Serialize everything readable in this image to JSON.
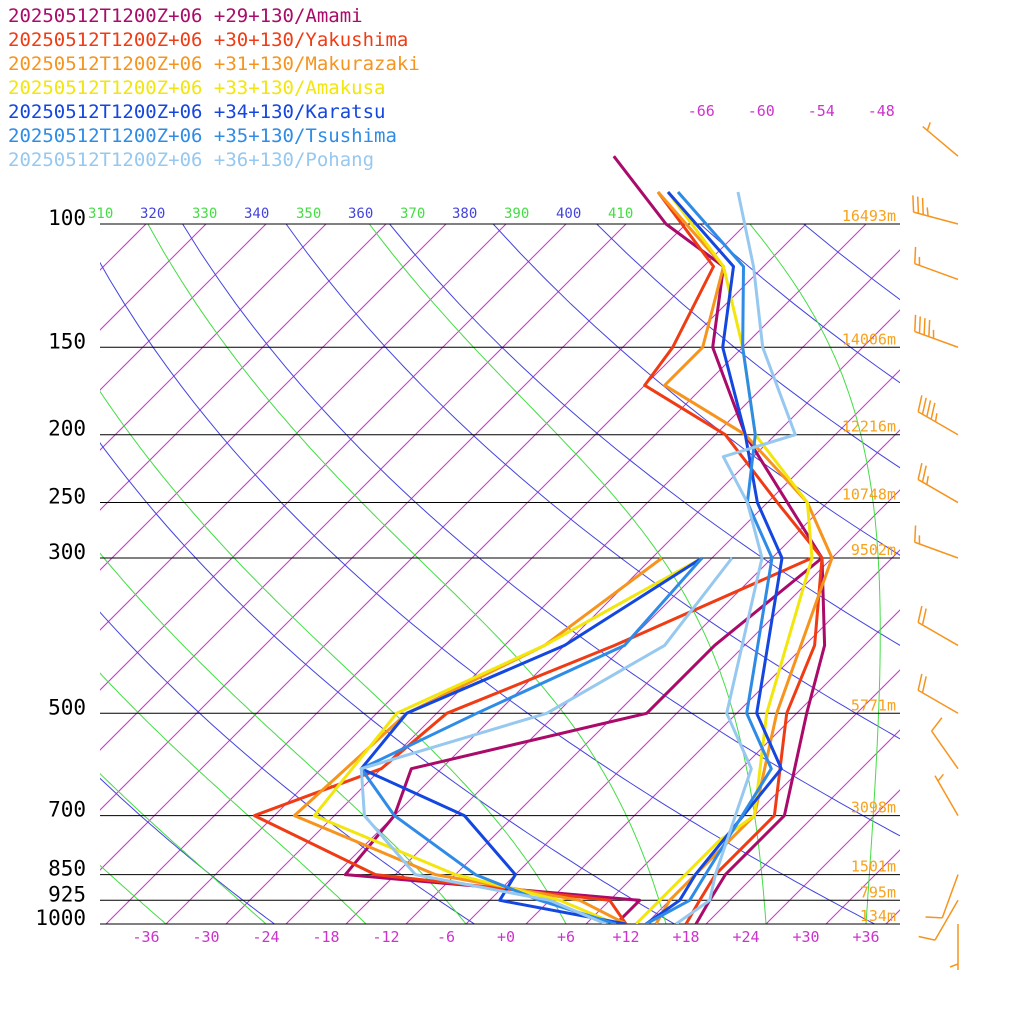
{
  "legend": [
    {
      "label": "20250512T1200Z+06 +29+130/Amami",
      "color": "#aa0a6a"
    },
    {
      "label": "20250512T1200Z+06 +30+130/Yakushima",
      "color": "#f03c14"
    },
    {
      "label": "20250512T1200Z+06 +31+130/Makurazaki",
      "color": "#f7941d"
    },
    {
      "label": "20250512T1200Z+06 +33+130/Amakusa",
      "color": "#f2e60c"
    },
    {
      "label": "20250512T1200Z+06 +34+130/Karatsu",
      "color": "#1446e0"
    },
    {
      "label": "20250512T1200Z+06 +35+130/Tsushima",
      "color": "#2e8ce6"
    },
    {
      "label": "20250512T1200Z+06 +36+130/Pohang",
      "color": "#96c8f0"
    }
  ],
  "colors": {
    "isotherm": "#cc33cc",
    "dry_adiabat": "#4444dd",
    "moist_adiabat": "#44dd44",
    "height_label": "#f7a21d",
    "wind_barb": "#f7941d",
    "pressure_line": "#000000"
  },
  "chart_data": {
    "type": "line",
    "subtype": "skew-T log-p",
    "pressure_levels": [
      100,
      150,
      200,
      250,
      300,
      500,
      700,
      850,
      925,
      1000
    ],
    "pressure_labels": [
      "100",
      "150",
      "200",
      "250",
      "300",
      "500",
      "700",
      "850",
      "925",
      "1000"
    ],
    "height_labels": [
      {
        "p": 100,
        "text": "16493m"
      },
      {
        "p": 150,
        "text": "14006m"
      },
      {
        "p": 200,
        "text": "12216m"
      },
      {
        "p": 250,
        "text": "10748m"
      },
      {
        "p": 300,
        "text": "9502m"
      },
      {
        "p": 500,
        "text": "5771m"
      },
      {
        "p": 700,
        "text": "3098m"
      },
      {
        "p": 850,
        "text": "1501m"
      },
      {
        "p": 925,
        "text": "795m"
      },
      {
        "p": 1000,
        "text": "134m"
      }
    ],
    "temperature_ticks": [
      "-36",
      "-30",
      "-24",
      "-18",
      "-12",
      "-6",
      "+0",
      "+6",
      "+12",
      "+18",
      "+24",
      "+30",
      "+36"
    ],
    "temperature_tick_values": [
      -36,
      -30,
      -24,
      -18,
      -12,
      -6,
      0,
      6,
      12,
      18,
      24,
      30,
      36
    ],
    "upper_isotherm_labels": [
      {
        "t": -66,
        "text": "-66"
      },
      {
        "t": -60,
        "text": "-60"
      },
      {
        "t": -54,
        "text": "-54"
      },
      {
        "t": -48,
        "text": "-48"
      }
    ],
    "theta_labels": [
      {
        "text": "310",
        "kind": "moist"
      },
      {
        "text": "320",
        "kind": "dry"
      },
      {
        "text": "330",
        "kind": "moist"
      },
      {
        "text": "340",
        "kind": "dry"
      },
      {
        "text": "350",
        "kind": "moist"
      },
      {
        "text": "360",
        "kind": "dry"
      },
      {
        "text": "370",
        "kind": "moist"
      },
      {
        "text": "380",
        "kind": "dry"
      },
      {
        "text": "390",
        "kind": "moist"
      },
      {
        "text": "400",
        "kind": "dry"
      },
      {
        "text": "410",
        "kind": "moist"
      }
    ],
    "xlim": [
      -40,
      40
    ],
    "ylim": [
      1000,
      100
    ],
    "series": [
      {
        "name": "20250512T1200Z+06 +29+130/Amami",
        "temperature": [
          [
            1000,
            19
          ],
          [
            925,
            18
          ],
          [
            850,
            17
          ],
          [
            700,
            17
          ],
          [
            500,
            9
          ],
          [
            400,
            4
          ],
          [
            300,
            -5
          ],
          [
            250,
            -14
          ],
          [
            200,
            -25
          ],
          [
            150,
            -37
          ],
          [
            115,
            -44
          ],
          [
            100,
            -54
          ],
          [
            80,
            -66
          ]
        ],
        "dewpoint": [
          [
            1000,
            11
          ],
          [
            925,
            11
          ],
          [
            850,
            -21
          ],
          [
            700,
            -22
          ],
          [
            600,
            -25
          ],
          [
            500,
            -7
          ],
          [
            400,
            -7
          ],
          [
            300,
            -5
          ]
        ]
      },
      {
        "name": "20250512T1200Z+06 +30+130/Yakushima",
        "temperature": [
          [
            1000,
            18
          ],
          [
            925,
            17
          ],
          [
            850,
            16
          ],
          [
            700,
            16
          ],
          [
            500,
            7
          ],
          [
            400,
            3
          ],
          [
            300,
            -5
          ],
          [
            250,
            -15
          ],
          [
            200,
            -27
          ],
          [
            170,
            -40
          ],
          [
            150,
            -41
          ],
          [
            115,
            -45
          ],
          [
            90,
            -58
          ]
        ],
        "dewpoint": [
          [
            1000,
            12
          ],
          [
            925,
            8
          ],
          [
            850,
            -18
          ],
          [
            700,
            -36
          ],
          [
            600,
            -28
          ],
          [
            500,
            -27
          ],
          [
            400,
            -17
          ],
          [
            300,
            -6
          ]
        ]
      },
      {
        "name": "20250512T1200Z+06 +31+130/Makurazaki",
        "temperature": [
          [
            1000,
            15
          ],
          [
            925,
            14
          ],
          [
            850,
            14
          ],
          [
            700,
            14
          ],
          [
            500,
            6
          ],
          [
            300,
            -4
          ],
          [
            250,
            -12
          ],
          [
            200,
            -25
          ],
          [
            170,
            -38
          ],
          [
            150,
            -38
          ],
          [
            115,
            -44
          ],
          [
            90,
            -58
          ]
        ],
        "dewpoint": [
          [
            1000,
            12
          ],
          [
            925,
            5
          ],
          [
            850,
            -12
          ],
          [
            700,
            -32
          ],
          [
            500,
            -31
          ],
          [
            400,
            -24
          ],
          [
            300,
            -21
          ]
        ]
      },
      {
        "name": "20250512T1200Z+06 +33+130/Amakusa",
        "temperature": [
          [
            1000,
            13
          ],
          [
            925,
            13
          ],
          [
            850,
            13
          ],
          [
            760,
            13
          ],
          [
            700,
            14
          ],
          [
            500,
            5
          ],
          [
            300,
            -6
          ],
          [
            250,
            -12
          ],
          [
            200,
            -24
          ],
          [
            150,
            -34
          ],
          [
            115,
            -44
          ],
          [
            90,
            -57
          ]
        ],
        "dewpoint": [
          [
            1000,
            11
          ],
          [
            925,
            3
          ],
          [
            850,
            -10
          ],
          [
            700,
            -30
          ],
          [
            500,
            -32
          ],
          [
            400,
            -24
          ],
          [
            300,
            -17
          ]
        ]
      },
      {
        "name": "20250512T1200Z+06 +34+130/Karatsu",
        "temperature": [
          [
            1000,
            14
          ],
          [
            925,
            15
          ],
          [
            850,
            14
          ],
          [
            600,
            12
          ],
          [
            500,
            4
          ],
          [
            300,
            -9
          ],
          [
            250,
            -17
          ],
          [
            200,
            -25
          ],
          [
            150,
            -36
          ],
          [
            115,
            -43
          ],
          [
            90,
            -57
          ]
        ],
        "dewpoint": [
          [
            1000,
            12
          ],
          [
            925,
            -3
          ],
          [
            850,
            -4
          ],
          [
            700,
            -15
          ],
          [
            600,
            -30
          ],
          [
            500,
            -31
          ],
          [
            400,
            -22
          ],
          [
            300,
            -17
          ]
        ]
      },
      {
        "name": "20250512T1200Z+06 +35+130/Tsushima",
        "temperature": [
          [
            1000,
            14
          ],
          [
            925,
            16
          ],
          [
            850,
            15
          ],
          [
            600,
            11
          ],
          [
            500,
            3
          ],
          [
            300,
            -10
          ],
          [
            250,
            -18
          ],
          [
            200,
            -24
          ],
          [
            150,
            -34
          ],
          [
            115,
            -42
          ],
          [
            90,
            -56
          ]
        ],
        "dewpoint": [
          [
            1000,
            11
          ],
          [
            925,
            1
          ],
          [
            850,
            -8
          ],
          [
            700,
            -22
          ],
          [
            600,
            -30
          ],
          [
            500,
            -24
          ],
          [
            400,
            -16
          ],
          [
            300,
            -17
          ]
        ]
      },
      {
        "name": "20250512T1200Z+06 +36+130/Pohang",
        "temperature": [
          [
            1000,
            17
          ],
          [
            925,
            18
          ],
          [
            850,
            16
          ],
          [
            600,
            9
          ],
          [
            500,
            1
          ],
          [
            300,
            -11
          ],
          [
            250,
            -18
          ],
          [
            215,
            -25
          ],
          [
            200,
            -20
          ],
          [
            150,
            -32
          ],
          [
            115,
            -41
          ],
          [
            90,
            -50
          ]
        ],
        "dewpoint": [
          [
            1000,
            10
          ],
          [
            925,
            2
          ],
          [
            850,
            -14
          ],
          [
            700,
            -25
          ],
          [
            600,
            -30
          ],
          [
            500,
            -17
          ],
          [
            400,
            -12
          ],
          [
            300,
            -14
          ]
        ]
      }
    ],
    "wind_barbs": [
      {
        "p": 80,
        "speed_kt": 5,
        "dir_deg": 310
      },
      {
        "p": 120,
        "speed_kt": 15,
        "dir_deg": 290
      },
      {
        "p": 100,
        "speed_kt": 35,
        "dir_deg": 285
      },
      {
        "p": 150,
        "speed_kt": 45,
        "dir_deg": 290
      },
      {
        "p": 200,
        "speed_kt": 45,
        "dir_deg": 300
      },
      {
        "p": 250,
        "speed_kt": 25,
        "dir_deg": 300
      },
      {
        "p": 300,
        "speed_kt": 15,
        "dir_deg": 290
      },
      {
        "p": 400,
        "speed_kt": 20,
        "dir_deg": 300
      },
      {
        "p": 500,
        "speed_kt": 20,
        "dir_deg": 300
      },
      {
        "p": 600,
        "speed_kt": 10,
        "dir_deg": 325
      },
      {
        "p": 700,
        "speed_kt": 5,
        "dir_deg": 330
      },
      {
        "p": 850,
        "speed_kt": 10,
        "dir_deg": 200
      },
      {
        "p": 925,
        "speed_kt": 10,
        "dir_deg": 210
      },
      {
        "p": 1000,
        "speed_kt": 5,
        "dir_deg": 180
      }
    ]
  }
}
